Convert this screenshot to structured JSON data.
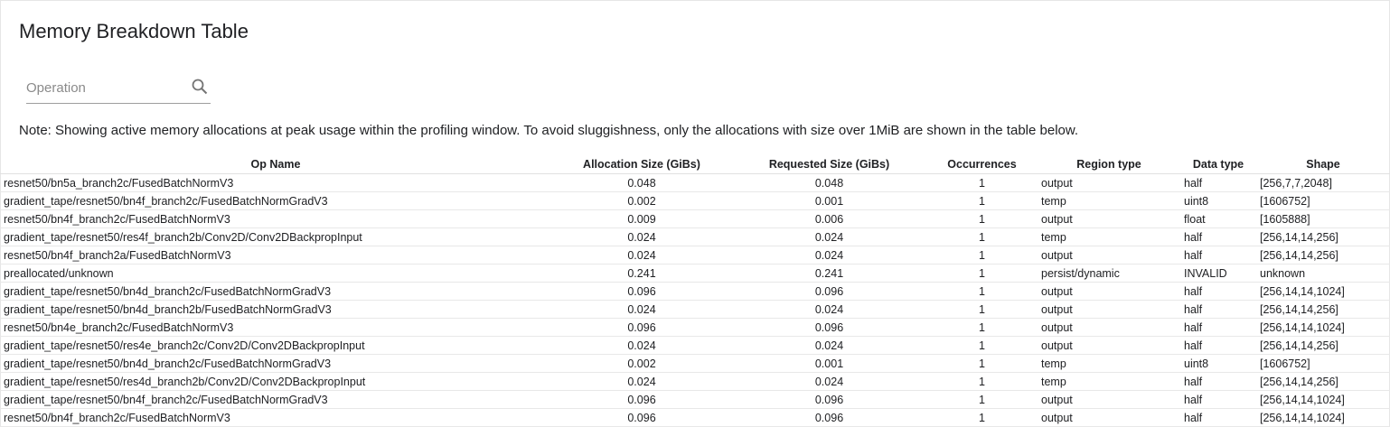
{
  "title": "Memory Breakdown Table",
  "search": {
    "placeholder": "Operation",
    "value": "",
    "icon": "search-icon"
  },
  "note": "Note: Showing active memory allocations at peak usage within the profiling window. To avoid sluggishness, only the allocations with size over 1MiB are shown in the table below.",
  "table": {
    "headers": [
      "Op Name",
      "Allocation Size (GiBs)",
      "Requested Size (GiBs)",
      "Occurrences",
      "Region type",
      "Data type",
      "Shape"
    ],
    "rows": [
      [
        "resnet50/bn5a_branch2c/FusedBatchNormV3",
        "0.048",
        "0.048",
        "1",
        "output",
        "half",
        "[256,7,7,2048]"
      ],
      [
        "gradient_tape/resnet50/bn4f_branch2c/FusedBatchNormGradV3",
        "0.002",
        "0.001",
        "1",
        "temp",
        "uint8",
        "[1606752]"
      ],
      [
        "resnet50/bn4f_branch2c/FusedBatchNormV3",
        "0.009",
        "0.006",
        "1",
        "output",
        "float",
        "[1605888]"
      ],
      [
        "gradient_tape/resnet50/res4f_branch2b/Conv2D/Conv2DBackpropInput",
        "0.024",
        "0.024",
        "1",
        "temp",
        "half",
        "[256,14,14,256]"
      ],
      [
        "resnet50/bn4f_branch2a/FusedBatchNormV3",
        "0.024",
        "0.024",
        "1",
        "output",
        "half",
        "[256,14,14,256]"
      ],
      [
        "preallocated/unknown",
        "0.241",
        "0.241",
        "1",
        "persist/dynamic",
        "INVALID",
        "unknown"
      ],
      [
        "gradient_tape/resnet50/bn4d_branch2c/FusedBatchNormGradV3",
        "0.096",
        "0.096",
        "1",
        "output",
        "half",
        "[256,14,14,1024]"
      ],
      [
        "gradient_tape/resnet50/bn4d_branch2b/FusedBatchNormGradV3",
        "0.024",
        "0.024",
        "1",
        "output",
        "half",
        "[256,14,14,256]"
      ],
      [
        "resnet50/bn4e_branch2c/FusedBatchNormV3",
        "0.096",
        "0.096",
        "1",
        "output",
        "half",
        "[256,14,14,1024]"
      ],
      [
        "gradient_tape/resnet50/res4e_branch2c/Conv2D/Conv2DBackpropInput",
        "0.024",
        "0.024",
        "1",
        "output",
        "half",
        "[256,14,14,256]"
      ],
      [
        "gradient_tape/resnet50/bn4d_branch2c/FusedBatchNormGradV3",
        "0.002",
        "0.001",
        "1",
        "temp",
        "uint8",
        "[1606752]"
      ],
      [
        "gradient_tape/resnet50/res4d_branch2b/Conv2D/Conv2DBackpropInput",
        "0.024",
        "0.024",
        "1",
        "temp",
        "half",
        "[256,14,14,256]"
      ],
      [
        "gradient_tape/resnet50/bn4f_branch2c/FusedBatchNormGradV3",
        "0.096",
        "0.096",
        "1",
        "output",
        "half",
        "[256,14,14,1024]"
      ],
      [
        "resnet50/bn4f_branch2c/FusedBatchNormV3",
        "0.096",
        "0.096",
        "1",
        "output",
        "half",
        "[256,14,14,1024]"
      ]
    ]
  }
}
